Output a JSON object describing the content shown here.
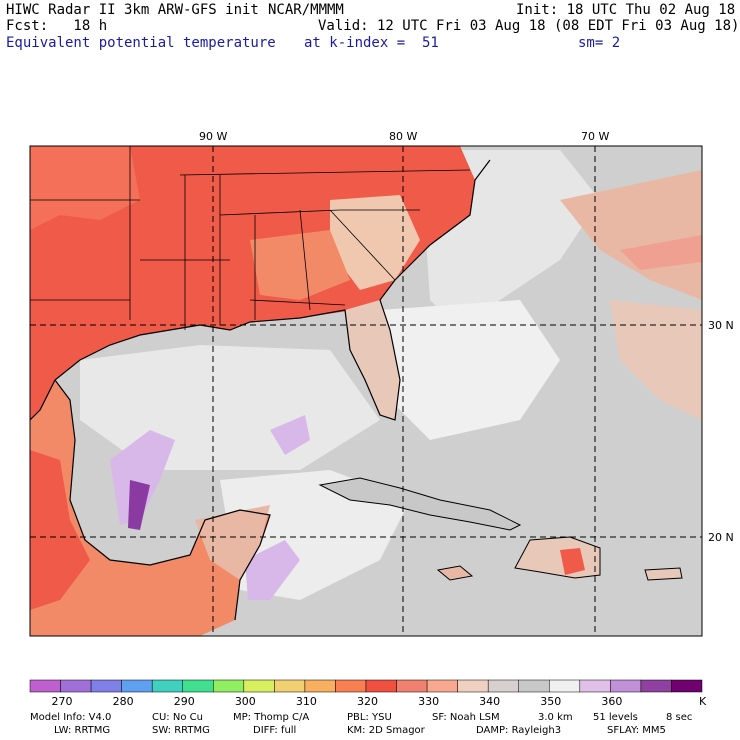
{
  "header": {
    "model_title": "HIWC Radar II 3km ARW-GFS init",
    "center": "NCAR/MMMM",
    "init": "Init: 18 UTC Thu 02 Aug 18",
    "fcst": "Fcst:   18 h",
    "valid": "Valid: 12 UTC Fri 03 Aug 18 (08 EDT Fri 03 Aug 18)",
    "field": "Equivalent potential temperature",
    "level": "at k-index =  51",
    "smooth": "sm= 2"
  },
  "map": {
    "lon_labels": [
      "90 W",
      "80 W",
      "70 W"
    ],
    "lat_labels": [
      "30 N",
      "20 N"
    ]
  },
  "colorbar": {
    "unit": "K",
    "tick_labels": [
      "270",
      "280",
      "290",
      "300",
      "310",
      "320",
      "330",
      "340",
      "350",
      "360"
    ],
    "colors": [
      "#c060d0",
      "#a070d8",
      "#8080e8",
      "#60a0f0",
      "#40d0c0",
      "#40e090",
      "#90ee60",
      "#d8f060",
      "#f0d070",
      "#f8b060",
      "#f88050",
      "#f05040",
      "#f08070",
      "#f8a890",
      "#f0d0c0",
      "#d8d0d0",
      "#c8c8c8",
      "#f0f0f0",
      "#e0c0e8",
      "#c090d8",
      "#9040a0",
      "#700070"
    ]
  },
  "footer": {
    "line1": [
      "Model Info: V4.0",
      "CU: No Cu",
      "MP: Thomp C/A",
      "PBL: YSU",
      "SF: Noah LSM",
      "3.0 km",
      "51 levels",
      "8 sec"
    ],
    "line2": [
      "LW: RRTMG",
      "SW: RRTMG",
      "DIFF: full",
      "KM: 2D Smagor",
      "DAMP: Rayleigh3",
      "SFLAY: MM5"
    ]
  }
}
